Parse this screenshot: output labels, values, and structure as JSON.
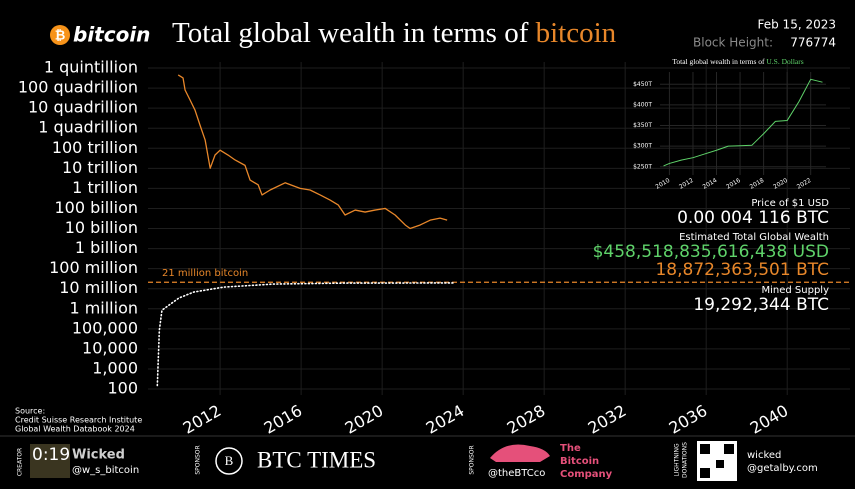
{
  "header": {
    "logo": "bitcoin",
    "title": "Total global wealth in terms of ",
    "title_highlight": "bitcoin",
    "date": "Feb 15, 2023",
    "block_height_label": "Block Height:",
    "block_height": "776774"
  },
  "readout": {
    "price_label": "Price of $1 USD",
    "price": "0.00 004 116 BTC",
    "wealth_label": "Estimated Total Global Wealth",
    "wealth_usd": "$458,518,835,616,438 USD",
    "wealth_btc": "18,872,363,501 BTC",
    "supply_label": "Mined Supply",
    "supply": "19,292,344 BTC"
  },
  "source": [
    "Source:",
    "Credit Suisse Research Institute",
    "Global Wealth Databook 2024"
  ],
  "footer": {
    "creator_tag": "CREATOR",
    "timer": "0:19",
    "creator_name": "Wicked",
    "creator_handle": "@w_s_bitcoin",
    "sponsor_tag_1": "SPONSOR",
    "sponsor_1": "BTC TIMES",
    "sponsor_tag_2": "SPONSOR",
    "sponsor_2_handle": "@theBTCco",
    "sponsor_2_name": [
      "The",
      "Bitcoin",
      "Company"
    ],
    "donation_tag": [
      "LIGHTNING",
      "DONATIONS"
    ],
    "donation": [
      "wicked",
      "@getalby.com"
    ]
  },
  "chart_data": [
    {
      "type": "line",
      "ylog": true,
      "grid": true,
      "xlim": [
        2008.44,
        2043.1
      ],
      "xticks": [
        2012,
        2016,
        2020,
        2024,
        2028,
        2032,
        2036,
        2040
      ],
      "ylim": [
        100,
        1e+18
      ],
      "yticks": [
        {
          "value": 1e+18,
          "label": "1 quintillion"
        },
        {
          "value": 1e+17,
          "label": "100 quadrillion"
        },
        {
          "value": 1e+16,
          "label": "10 quadrillion"
        },
        {
          "value": 1000000000000000.0,
          "label": "1 quadrillion"
        },
        {
          "value": 100000000000000.0,
          "label": "100 trillion"
        },
        {
          "value": 10000000000000.0,
          "label": "10 trillion"
        },
        {
          "value": 1000000000000.0,
          "label": "1 trillion"
        },
        {
          "value": 100000000000.0,
          "label": "100 billion"
        },
        {
          "value": 10000000000.0,
          "label": "10 billion"
        },
        {
          "value": 1000000000.0,
          "label": "1 billion"
        },
        {
          "value": 100000000.0,
          "label": "100 million"
        },
        {
          "value": 10000000.0,
          "label": "10 million"
        },
        {
          "value": 1000000.0,
          "label": "1 million"
        },
        {
          "value": 100000,
          "label": "100,000"
        },
        {
          "value": 10000,
          "label": "10,000"
        },
        {
          "value": 1000,
          "label": "1,000"
        },
        100
      ],
      "series": [
        {
          "color": "#e8872a",
          "style": "solid",
          "x": [
            2009.93,
            2010.17,
            2010.27,
            2010.52,
            2010.76,
            2011.01,
            2011.26,
            2011.51,
            2011.75,
            2012.0,
            2012.39,
            2012.74,
            2013.23,
            2013.48,
            2013.88,
            2014.07,
            2014.47,
            2015.21,
            2015.95,
            2016.44,
            2016.94,
            2017.43,
            2017.83,
            2018.17,
            2018.67,
            2019.16,
            2019.65,
            2020.15,
            2020.64,
            2021.14,
            2021.38,
            2021.88,
            2022.37,
            2022.86,
            2023.21
          ],
          "values": [
            4.5e+17,
            3.2e+17,
            8e+16,
            2.5e+16,
            8000000000000000.0,
            1400000000000000.0,
            260000000000000.0,
            10000000000000.0,
            46000000000000.0,
            80000000000000.0,
            46000000000000.0,
            26000000000000.0,
            14000000000000.0,
            2600000000000.0,
            1500000000000.0,
            470000000000.0,
            830000000000.0,
            1900000000000.0,
            1000000000000.0,
            830000000000.0,
            470000000000.0,
            260000000000.0,
            150000000000.0,
            47000000000.0,
            83000000000.0,
            66000000000.0,
            83000000000.0,
            100000000000.0,
            47000000000.0,
            15000000000.0,
            10000000000.0,
            15000000000.0,
            26000000000.0,
            33000000000.0,
            26000000000.0
          ]
        },
        {
          "color": "#ffffff",
          "style": "dotted",
          "x": [
            2008.9,
            2009.0,
            2009.13,
            2009.47,
            2009.96,
            2010.7,
            2012.18,
            2014.65,
            2018.1,
            2023.04,
            2023.6
          ],
          "values": [
            150,
            85000,
            850000,
            1500000,
            3400000,
            6800000,
            12000000,
            17000000,
            19000000,
            19300000,
            19300000
          ]
        }
      ],
      "annotations": [
        {
          "text": "21 million bitcoin",
          "y": 21000000,
          "color": "#e8872a"
        }
      ]
    },
    {
      "type": "line",
      "title": "Total global wealth in terms of ",
      "title_highlight": "U.S. Dollars",
      "grid": true,
      "xlim": [
        2009.2,
        2023.3
      ],
      "xticks": [
        2010,
        2012,
        2014,
        2016,
        2018,
        2020,
        2022
      ],
      "ylim": [
        230,
        470
      ],
      "yticks": [
        {
          "value": 250,
          "label": "$250T"
        },
        {
          "value": 300,
          "label": "$300T"
        },
        {
          "value": 350,
          "label": "$350T"
        },
        {
          "value": 400,
          "label": "$400T"
        },
        {
          "value": 450,
          "label": "$450T"
        }
      ],
      "series": [
        {
          "color": "#5fd36a",
          "style": "solid",
          "x": [
            2009.5,
            2010,
            2011,
            2012,
            2013,
            2014,
            2015,
            2016,
            2017,
            2018,
            2019,
            2020,
            2021,
            2022,
            2023
          ],
          "values": [
            252,
            258,
            266,
            272,
            281,
            290,
            300,
            301,
            302,
            330,
            360,
            362,
            408,
            462,
            455
          ]
        }
      ]
    }
  ]
}
